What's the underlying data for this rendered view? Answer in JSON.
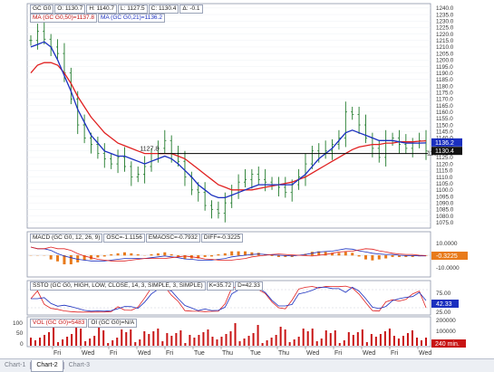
{
  "price_panel": {
    "ohlc": {
      "symbol": "GC G0",
      "open": "O: 1130.7",
      "high": "H: 1140.7",
      "low": "L: 1127.5",
      "close": "C: 1130.4",
      "change": "Δ: -0.1"
    },
    "ma_slow_label": "MA (GC G0,50)=1137.8",
    "ma_fast_label": "MA (GC G0,21)=1136.2",
    "ma_slow_color": "#e02020",
    "ma_fast_color": "#1a2fbf",
    "yticks": [
      1240,
      1235,
      1230,
      1225,
      1220,
      1215,
      1210,
      1205,
      1200,
      1195,
      1190,
      1185,
      1180,
      1175,
      1170,
      1165,
      1160,
      1155,
      1150,
      1145,
      1140,
      1135,
      1130,
      1125,
      1120,
      1115,
      1110,
      1105,
      1100,
      1095,
      1090,
      1085,
      1080,
      1075
    ],
    "ylim": [
      1072,
      1242
    ],
    "annotation_text": "1127.8",
    "annotation_right_text": "113",
    "annotation_level": 1128,
    "badge_fast": "1136.2",
    "badge_close": "1130.4"
  },
  "macd_panel": {
    "label": "MACD (GC G0, 12, 26, 9)",
    "osc_label": "OSC=-1.1156",
    "ema_label": "EMAOSC=-0.7932",
    "diff_label": "DIFF=-0.3225",
    "yticks": [
      "10.0000",
      "-10.0000"
    ],
    "badge": "-0.3225",
    "badge_color": "#e87a1a"
  },
  "ssto_panel": {
    "label": "SSTO (GC G0, HIGH, LOW, CLOSE, 14, 3, SIMPLE, 3, SIMPLE)",
    "k_label": "K=35.72",
    "d_label": "D=42.33",
    "yticks": [
      "75.00",
      "25.00"
    ],
    "badge": "42.33",
    "badge_color": "#1a2fbf"
  },
  "volume_panel": {
    "vol_label": "VOL (GC G0)=5483",
    "oi_label": "OI (GC G0)=N/A",
    "left_ticks": [
      "100",
      "50",
      "0"
    ],
    "right_ticks": [
      "200000",
      "100000"
    ],
    "badge": "240 min.",
    "bar_color": "#c81414"
  },
  "time_axis": {
    "labels": [
      "Fri",
      "Wed",
      "Fri",
      "Wed",
      "Fri",
      "Tue",
      "Thu",
      "Tue",
      "Thu",
      "Wed",
      "Fri",
      "Wed",
      "Fri",
      "Wed"
    ]
  },
  "tabs": [
    "Chart-1",
    "Chart-2",
    "Chart-3"
  ],
  "active_tab": "Chart-2",
  "chart_data": {
    "type": "line",
    "series": [
      {
        "name": "GC G0",
        "values": [
          1215,
          1222,
          1216,
          1210,
          1205,
          1190,
          1170,
          1150,
          1140,
          1135,
          1128,
          1124,
          1120,
          1125,
          1118,
          1110,
          1112,
          1118,
          1128,
          1132,
          1138,
          1128,
          1122,
          1110,
          1100,
          1098,
          1088,
          1085,
          1082,
          1090,
          1100,
          1106,
          1108,
          1112,
          1108,
          1106,
          1104,
          1102,
          1098,
          1104,
          1110,
          1120,
          1130,
          1128,
          1130,
          1135,
          1140,
          1160,
          1158,
          1150,
          1140,
          1132,
          1125,
          1138,
          1140,
          1135,
          1132,
          1136,
          1138,
          1130
        ]
      },
      {
        "name": "MA (GC G0,21)",
        "values": [
          1210,
          1212,
          1214,
          1210,
          1200,
          1188,
          1176,
          1162,
          1152,
          1142,
          1136,
          1130,
          1128,
          1126,
          1126,
          1124,
          1122,
          1120,
          1122,
          1124,
          1126,
          1124,
          1120,
          1115,
          1110,
          1104,
          1100,
          1096,
          1094,
          1094,
          1096,
          1098,
          1100,
          1102,
          1104,
          1104,
          1104,
          1104,
          1104,
          1104,
          1108,
          1112,
          1118,
          1124,
          1128,
          1132,
          1138,
          1144,
          1146,
          1144,
          1142,
          1140,
          1138,
          1138,
          1138,
          1137,
          1136,
          1136,
          1136,
          1136.2
        ]
      },
      {
        "name": "MA (GC G0,50)",
        "values": [
          1190,
          1196,
          1198,
          1198,
          1196,
          1190,
          1182,
          1172,
          1164,
          1156,
          1150,
          1144,
          1140,
          1136,
          1134,
          1132,
          1130,
          1128,
          1128,
          1128,
          1128,
          1128,
          1126,
          1124,
          1120,
          1116,
          1112,
          1108,
          1104,
          1102,
          1100,
          1100,
          1100,
          1100,
          1101,
          1102,
          1103,
          1104,
          1105,
          1106,
          1108,
          1110,
          1113,
          1116,
          1119,
          1122,
          1125,
          1128,
          1131,
          1133,
          1134,
          1135,
          1135,
          1136,
          1136,
          1137,
          1137,
          1137,
          1137.5,
          1137.8
        ]
      }
    ],
    "ylim": [
      1072,
      1242
    ]
  }
}
